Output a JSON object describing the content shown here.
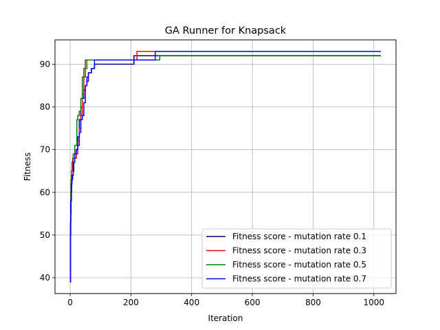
{
  "chart_data": {
    "type": "line",
    "title": "GA Runner for Knapsack",
    "xlabel": "Iteration",
    "ylabel": "Fitness",
    "xlim": [
      -50,
      1073
    ],
    "ylim": [
      36.3,
      95.7
    ],
    "xticks": [
      0,
      200,
      400,
      600,
      800,
      1000
    ],
    "yticks": [
      40,
      50,
      60,
      70,
      80,
      90
    ],
    "grid": true,
    "legend_position": "lower-right",
    "series": [
      {
        "name": "Fitness score - mutation rate 0.1",
        "color": "#00008b",
        "x": [
          0,
          1,
          2,
          3,
          4,
          5,
          6,
          8,
          10,
          12,
          15,
          20,
          25,
          30,
          35,
          40,
          45,
          50,
          55,
          60,
          70,
          80,
          205,
          210,
          290,
          1023
        ],
        "y": [
          39,
          50,
          55,
          58,
          60,
          62,
          63,
          64,
          65,
          67,
          68,
          70,
          73,
          77,
          80,
          82,
          84,
          85,
          87,
          88,
          89,
          90,
          90,
          92,
          92,
          92
        ]
      },
      {
        "name": "Fitness score - mutation rate 0.3",
        "color": "#ff0000",
        "x": [
          0,
          1,
          2,
          3,
          4,
          6,
          8,
          15,
          20,
          25,
          30,
          35,
          40,
          45,
          50,
          55,
          215,
          220,
          1023
        ],
        "y": [
          41,
          53,
          58,
          62,
          65,
          67,
          68,
          68,
          69,
          72,
          75,
          78,
          83,
          87,
          91,
          91,
          91,
          93,
          93
        ]
      },
      {
        "name": "Fitness score - mutation rate 0.5",
        "color": "#008000",
        "x": [
          0,
          1,
          2,
          3,
          5,
          10,
          15,
          20,
          22,
          25,
          30,
          35,
          40,
          45,
          50,
          55,
          285,
          295,
          1023
        ],
        "y": [
          42,
          53,
          60,
          63,
          64,
          69,
          71,
          71,
          77,
          78,
          79,
          82,
          87,
          89,
          89,
          91,
          91,
          92,
          92
        ]
      },
      {
        "name": "Fitness score - mutation rate 0.7",
        "color": "#0000ff",
        "x": [
          0,
          1,
          2,
          4,
          6,
          10,
          15,
          20,
          25,
          30,
          35,
          40,
          45,
          50,
          55,
          60,
          70,
          80,
          270,
          280,
          1023
        ],
        "y": [
          39,
          53,
          58,
          62,
          64,
          67,
          69,
          70,
          71,
          74,
          77,
          78,
          81,
          85,
          86,
          88,
          89,
          91,
          91,
          93,
          93
        ]
      }
    ]
  }
}
